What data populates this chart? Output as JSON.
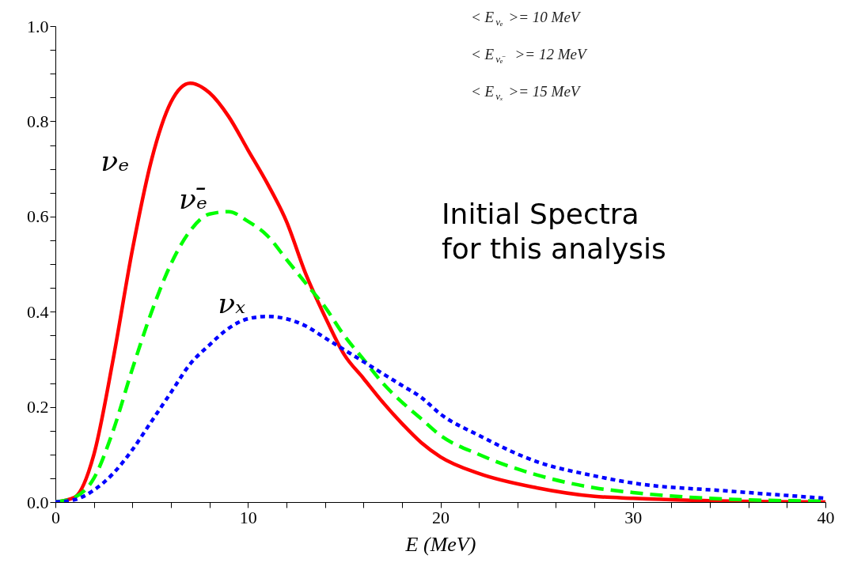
{
  "chart_data": {
    "type": "line",
    "xlabel": "E (MeV)",
    "x": [
      0,
      1,
      2,
      3,
      4,
      5,
      6,
      7,
      8,
      9,
      10,
      11,
      12,
      13,
      14,
      15,
      16,
      17,
      18,
      19,
      20,
      22,
      25,
      28,
      30,
      35,
      40
    ],
    "series": [
      {
        "name": "νₑ",
        "color": "#ff0000",
        "line_style": "solid",
        "values": [
          0,
          0.01,
          0.1,
          0.3,
          0.53,
          0.72,
          0.84,
          0.88,
          0.86,
          0.81,
          0.74,
          0.67,
          0.59,
          0.48,
          0.39,
          0.31,
          0.26,
          0.21,
          0.165,
          0.125,
          0.095,
          0.06,
          0.03,
          0.012,
          0.008,
          0.002,
          0
        ]
      },
      {
        "name": "νₑ̄",
        "color": "#00ff00",
        "line_style": "dashed",
        "values": [
          0,
          0.01,
          0.05,
          0.15,
          0.28,
          0.4,
          0.5,
          0.57,
          0.605,
          0.61,
          0.59,
          0.56,
          0.51,
          0.46,
          0.41,
          0.35,
          0.3,
          0.25,
          0.21,
          0.175,
          0.14,
          0.1,
          0.057,
          0.03,
          0.02,
          0.006,
          0.002
        ]
      },
      {
        "name": "νₓ",
        "color": "#0000ff",
        "line_style": "dotted",
        "values": [
          0,
          0.005,
          0.025,
          0.06,
          0.11,
          0.17,
          0.23,
          0.29,
          0.33,
          0.365,
          0.385,
          0.39,
          0.385,
          0.37,
          0.345,
          0.32,
          0.295,
          0.27,
          0.245,
          0.22,
          0.185,
          0.14,
          0.085,
          0.055,
          0.04,
          0.023,
          0.008
        ]
      }
    ],
    "xlim": [
      0,
      40
    ],
    "xticks": [
      0,
      {
        "value": 2,
        "label": null
      },
      {
        "value": 4,
        "label": null
      },
      {
        "value": 6,
        "label": null
      },
      {
        "value": 8,
        "label": null
      },
      10,
      {
        "value": 12,
        "label": null
      },
      {
        "value": 14,
        "label": null
      },
      {
        "value": 16,
        "label": null
      },
      {
        "value": 18,
        "label": null
      },
      20,
      {
        "value": 22,
        "label": null
      },
      {
        "value": 24,
        "label": null
      },
      {
        "value": 26,
        "label": null
      },
      {
        "value": 28,
        "label": null
      },
      30,
      {
        "value": 32,
        "label": null
      },
      {
        "value": 34,
        "label": null
      },
      {
        "value": 36,
        "label": null
      },
      {
        "value": 38,
        "label": null
      },
      40
    ],
    "ylim": [
      0,
      1.0
    ],
    "yticks": [
      {
        "value": 0,
        "label": "0.0"
      },
      {
        "value": 0.05,
        "label": null
      },
      {
        "value": 0.1,
        "label": null
      },
      {
        "value": 0.15,
        "label": null
      },
      {
        "value": 0.2,
        "label": "0.2"
      },
      {
        "value": 0.25,
        "label": null
      },
      {
        "value": 0.3,
        "label": null
      },
      {
        "value": 0.35,
        "label": null
      },
      {
        "value": 0.4,
        "label": "0.4"
      },
      {
        "value": 0.45,
        "label": null
      },
      {
        "value": 0.5,
        "label": null
      },
      {
        "value": 0.55,
        "label": null
      },
      {
        "value": 0.6,
        "label": "0.6"
      },
      {
        "value": 0.65,
        "label": null
      },
      {
        "value": 0.7,
        "label": null
      },
      {
        "value": 0.75,
        "label": null
      },
      {
        "value": 0.8,
        "label": "0.8"
      },
      {
        "value": 0.85,
        "label": null
      },
      {
        "value": 0.9,
        "label": null
      },
      {
        "value": 0.95,
        "label": null
      },
      {
        "value": 1.0,
        "label": "1.0"
      }
    ],
    "grid": false,
    "legend": false,
    "annotations": [
      "< E$_{νₑ}$ >= 10 MeV",
      "< E$_{νₑ̄}$ >= 12 MeV",
      "< E$_{νₓ}$ >= 15 MeV",
      "Initial Spectra\nfor this analysis"
    ]
  }
}
